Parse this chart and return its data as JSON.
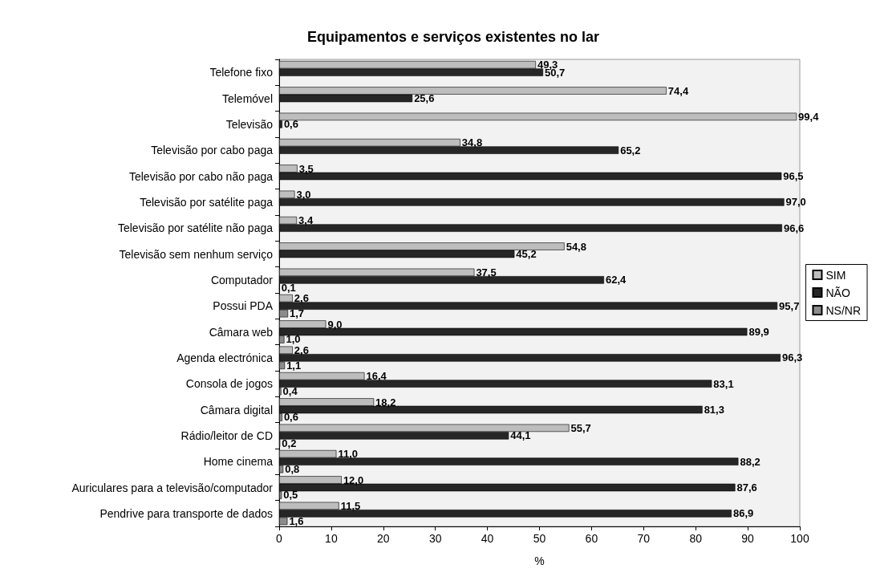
{
  "chart_data": {
    "type": "bar",
    "orientation": "horizontal",
    "title": "Equipamentos e serviços existentes no lar",
    "xlabel": "%",
    "categories": [
      "Telefone fixo",
      "Telemóvel",
      "Televisão",
      "Televisão por cabo paga",
      "Televisão por cabo não paga",
      "Televisão por satélite paga",
      "Televisão por satélite não paga",
      "Televisão sem nenhum serviço",
      "Computador",
      "Possui PDA",
      "Câmara web",
      "Agenda electrónica",
      "Consola de jogos",
      "Câmara digital",
      "Rádio/leitor de CD",
      "Home cinema",
      "Auriculares para a televisão/computador",
      "Pendrive para transporte de dados"
    ],
    "series": [
      {
        "name": "SIM",
        "color": "#bdbdbd",
        "values": [
          49.3,
          74.4,
          99.4,
          34.8,
          3.5,
          3.0,
          3.4,
          54.8,
          37.5,
          2.6,
          9.0,
          2.6,
          16.4,
          18.2,
          55.7,
          11.0,
          12.0,
          11.5
        ],
        "value_labels": [
          "49,3",
          "74,4",
          "99,4",
          "34,8",
          "3,5",
          "3,0",
          "3,4",
          "54,8",
          "37,5",
          "2,6",
          "9,0",
          "2,6",
          "16,4",
          "18,2",
          "55,7",
          "11,0",
          "12,0",
          "11,5"
        ]
      },
      {
        "name": "NÃO",
        "color": "#262626",
        "values": [
          50.7,
          25.6,
          0.6,
          65.2,
          96.5,
          97.0,
          96.6,
          45.2,
          62.4,
          95.7,
          89.9,
          96.3,
          83.1,
          81.3,
          44.1,
          88.2,
          87.6,
          86.9
        ],
        "value_labels": [
          "50,7",
          "25,6",
          "0,6",
          "65,2",
          "96,5",
          "97,0",
          "96,6",
          "45,2",
          "62,4",
          "95,7",
          "89,9",
          "96,3",
          "83,1",
          "81,3",
          "44,1",
          "88,2",
          "87,6",
          "86,9"
        ]
      },
      {
        "name": "NS/NR",
        "color": "#8c8c8c",
        "values": [
          null,
          null,
          null,
          null,
          null,
          null,
          null,
          null,
          0.1,
          1.7,
          1.0,
          1.1,
          0.4,
          0.6,
          0.2,
          0.8,
          0.5,
          1.6
        ],
        "value_labels": [
          null,
          null,
          null,
          null,
          null,
          null,
          null,
          null,
          "0,1",
          "1,7",
          "1,0",
          "1,1",
          "0,4",
          "0,6",
          "0,2",
          "0,8",
          "0,5",
          "1,6"
        ]
      }
    ],
    "xlim": [
      0,
      100
    ],
    "xticks": [
      0,
      10,
      20,
      30,
      40,
      50,
      60,
      70,
      80,
      90,
      100
    ],
    "grid": false,
    "legend": "right"
  }
}
